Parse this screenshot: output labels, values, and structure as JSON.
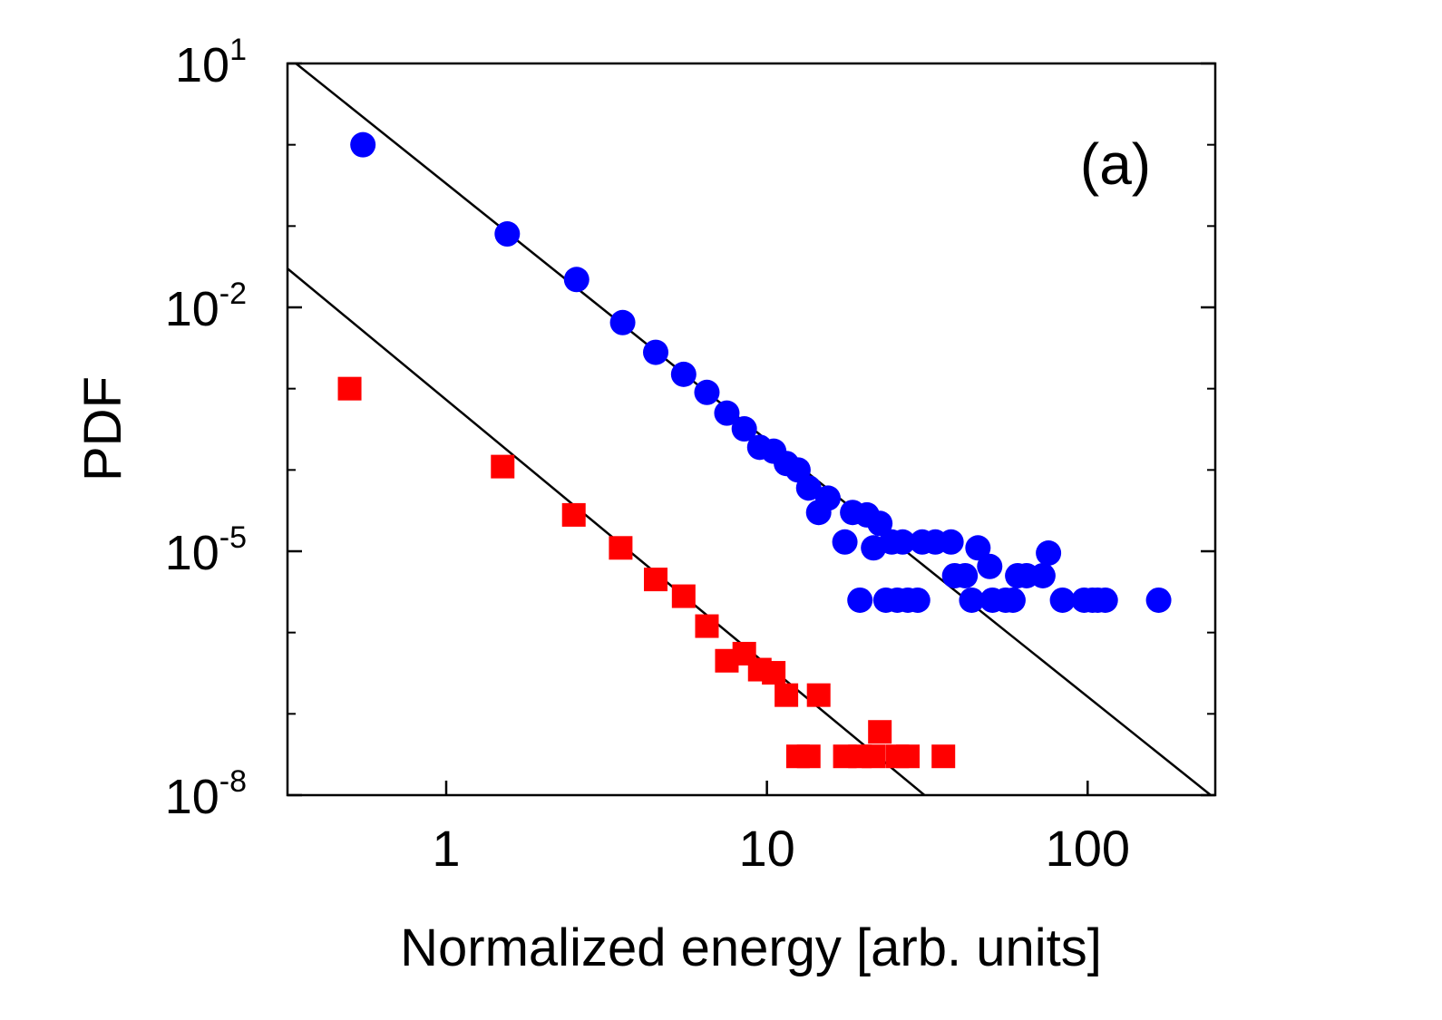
{
  "chart_data": {
    "type": "scatter",
    "title": "",
    "panel_label": "(a)",
    "xlabel": "Normalized energy [arb. units]",
    "ylabel": "PDF",
    "x_scale": "log",
    "y_scale": "log",
    "xlim": [
      0.32,
      250
    ],
    "ylim": [
      1e-08,
      10
    ],
    "x_ticks": [
      {
        "value": 1,
        "label": "1"
      },
      {
        "value": 10,
        "label": "10"
      },
      {
        "value": 100,
        "label": "100"
      }
    ],
    "y_ticks": [
      {
        "value": 10,
        "base": "10",
        "exp": "1"
      },
      {
        "value": 0.01,
        "base": "10",
        "exp": "-2"
      },
      {
        "value": 1e-05,
        "base": "10",
        "exp": "-5"
      },
      {
        "value": 1e-08,
        "base": "10",
        "exp": "-8"
      }
    ],
    "y_minor_ticks": [
      1,
      0.1,
      0.001,
      0.0001,
      1e-06,
      1e-07
    ],
    "series": [
      {
        "name": "circles",
        "marker": "circle",
        "color": "#0000ff",
        "points": [
          [
            0.55,
            1.0
          ],
          [
            1.55,
            0.08
          ],
          [
            2.55,
            0.022
          ],
          [
            3.55,
            0.0065
          ],
          [
            4.5,
            0.0028
          ],
          [
            5.5,
            0.0015
          ],
          [
            6.5,
            0.0009
          ],
          [
            7.5,
            0.0005
          ],
          [
            8.5,
            0.00032
          ],
          [
            9.5,
            0.00019
          ],
          [
            10.5,
            0.00017
          ],
          [
            11.5,
            0.00012
          ],
          [
            12.5,
            0.0001
          ],
          [
            13.5,
            6e-05
          ],
          [
            14.5,
            3e-05
          ],
          [
            15.5,
            4.5e-05
          ],
          [
            17.5,
            1.3e-05
          ],
          [
            18.5,
            3e-05
          ],
          [
            19.5,
            2.5e-06
          ],
          [
            20.5,
            2.8e-05
          ],
          [
            21.5,
            1.1e-05
          ],
          [
            22.5,
            2.2e-05
          ],
          [
            23.5,
            2.5e-06
          ],
          [
            24.5,
            1.3e-05
          ],
          [
            25.5,
            2.5e-06
          ],
          [
            26.5,
            1.3e-05
          ],
          [
            27.5,
            2.5e-06
          ],
          [
            29.5,
            2.5e-06
          ],
          [
            30.5,
            1.3e-05
          ],
          [
            33.5,
            1.3e-05
          ],
          [
            37.5,
            1.3e-05
          ],
          [
            38.5,
            5e-06
          ],
          [
            41.5,
            5e-06
          ],
          [
            43.5,
            2.5e-06
          ],
          [
            45.5,
            1.1e-05
          ],
          [
            49.5,
            6.5e-06
          ],
          [
            50.5,
            2.5e-06
          ],
          [
            55.5,
            2.5e-06
          ],
          [
            58.5,
            2.5e-06
          ],
          [
            60.5,
            5e-06
          ],
          [
            64.5,
            5e-06
          ],
          [
            72.5,
            5e-06
          ],
          [
            75.5,
            9.5e-06
          ],
          [
            83.5,
            2.5e-06
          ],
          [
            97.5,
            2.5e-06
          ],
          [
            103.5,
            2.5e-06
          ],
          [
            107.5,
            2.5e-06
          ],
          [
            113.5,
            2.5e-06
          ],
          [
            166.5,
            2.5e-06
          ]
        ]
      },
      {
        "name": "squares",
        "marker": "square",
        "color": "#ff0000",
        "points": [
          [
            0.5,
            0.001
          ],
          [
            1.5,
            0.00011
          ],
          [
            2.5,
            2.8e-05
          ],
          [
            3.5,
            1.1e-05
          ],
          [
            4.5,
            4.5e-06
          ],
          [
            5.5,
            2.8e-06
          ],
          [
            6.5,
            1.2e-06
          ],
          [
            7.5,
            4.5e-07
          ],
          [
            8.5,
            5.5e-07
          ],
          [
            9.5,
            3.5e-07
          ],
          [
            10.5,
            3.2e-07
          ],
          [
            11.5,
            1.7e-07
          ],
          [
            12.5,
            3e-08
          ],
          [
            13.5,
            3e-08
          ],
          [
            14.5,
            1.7e-07
          ],
          [
            17.5,
            3e-08
          ],
          [
            19.5,
            3e-08
          ],
          [
            21.5,
            3e-08
          ],
          [
            22.5,
            6e-08
          ],
          [
            25.5,
            3e-08
          ],
          [
            27.5,
            3e-08
          ],
          [
            35.5,
            3e-08
          ]
        ]
      }
    ],
    "fit_lines": [
      {
        "name": "fit-upper",
        "color": "#000000",
        "points": [
          [
            0.34,
            10
          ],
          [
            242,
            1e-08
          ]
        ]
      },
      {
        "name": "fit-lower",
        "color": "#000000",
        "points": [
          [
            0.32,
            0.03
          ],
          [
            31,
            1e-08
          ]
        ]
      }
    ]
  }
}
